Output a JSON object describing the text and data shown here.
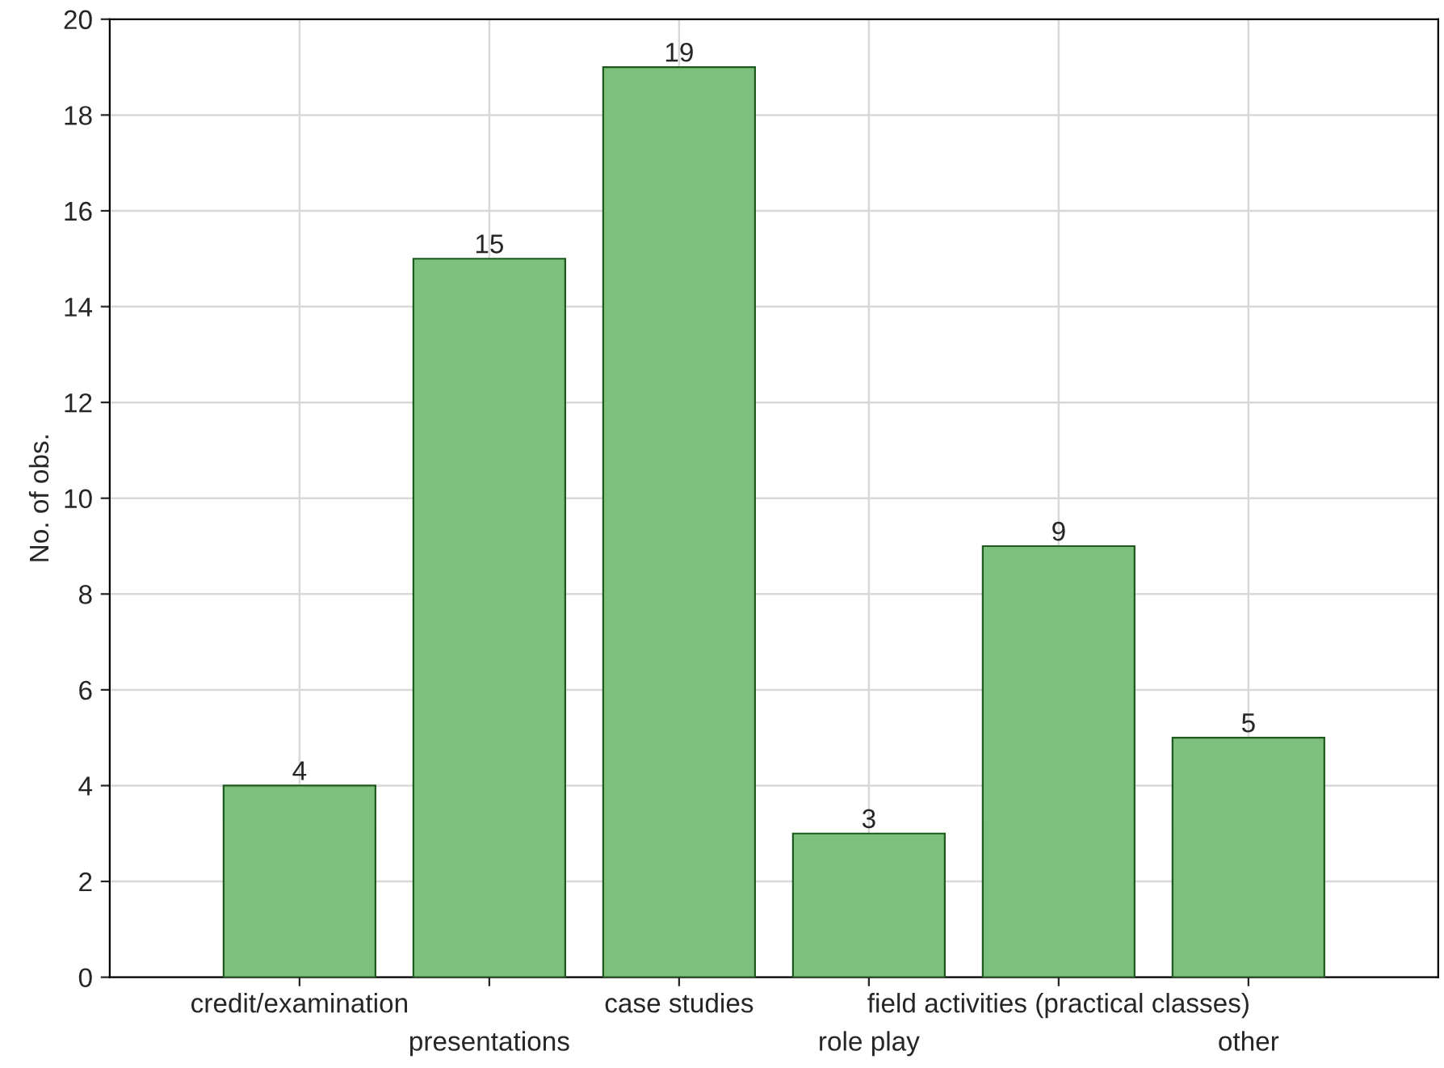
{
  "chart_data": {
    "type": "bar",
    "ylabel": "No. of obs.",
    "categories": [
      "credit/examination",
      "presentations",
      "case studies",
      "role play",
      "field activities (practical classes)",
      "other"
    ],
    "values": [
      4,
      15,
      19,
      3,
      9,
      5
    ],
    "color": "#7dbf7d",
    "ylim": [
      0,
      20
    ],
    "yticks": [
      0,
      2,
      4,
      6,
      8,
      10,
      12,
      14,
      16,
      18,
      20
    ],
    "grid": true,
    "data_labels": true
  }
}
